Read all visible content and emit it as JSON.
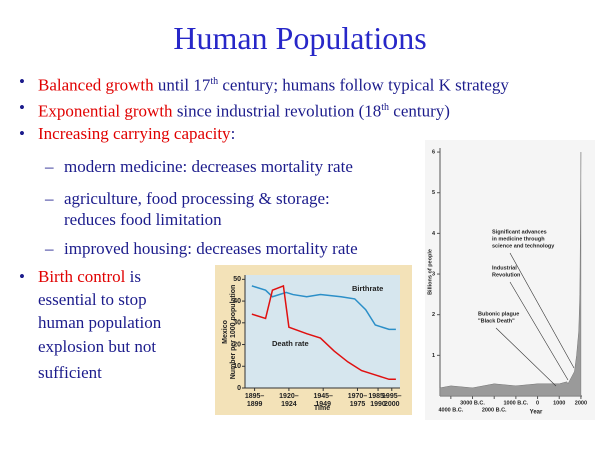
{
  "slide": {
    "title": "Human Populations",
    "bullets": [
      {
        "segments": [
          {
            "text": "Balanced growth",
            "color": "#e00000"
          },
          {
            "text": " until 17"
          },
          {
            "text": "th",
            "sup": true
          },
          {
            "text": " century; humans follow typical K strategy"
          }
        ]
      },
      {
        "segments": [
          {
            "text": "Exponential growth",
            "color": "#e00000"
          },
          {
            "text": " since industrial revolution (18"
          },
          {
            "text": "th",
            "sup": true
          },
          {
            "text": " century)"
          }
        ]
      },
      {
        "segments": [
          {
            "text": "Increasing carrying capacity",
            "color": "#e00000"
          },
          {
            "text": ":"
          }
        ],
        "sub": [
          {
            "lines": [
              "modern medicine: decreases mortality rate"
            ]
          },
          {
            "lines": [
              "agriculture, food processing & storage:",
              "reduces food limitation"
            ]
          },
          {
            "lines": [
              "improved housing: decreases mortality rate"
            ]
          }
        ]
      },
      {
        "segments": [
          {
            "text": "Birth control",
            "color": "#e00000"
          },
          {
            "text": " is"
          }
        ],
        "lines": [
          "essential to stop",
          "human population",
          "explosion but not",
          "sufficient"
        ]
      }
    ]
  },
  "chart_data": [
    {
      "type": "line",
      "country_label": "Mexico",
      "y_label": "Number per 1000 population",
      "x_label": "Time",
      "xlim": [
        1890,
        2003
      ],
      "ylim": [
        0,
        52
      ],
      "yticks": [
        0,
        10,
        20,
        30,
        40,
        50
      ],
      "xticks": [
        {
          "value": 1897,
          "label": [
            "1895–",
            "1899"
          ]
        },
        {
          "value": 1922,
          "label": [
            "1920–",
            "1924"
          ]
        },
        {
          "value": 1947,
          "label": [
            "1945–",
            "1949"
          ]
        },
        {
          "value": 1972,
          "label": [
            "1970–",
            "1975"
          ]
        },
        {
          "value": 1987,
          "label": [
            "1985–",
            "1990"
          ]
        },
        {
          "value": 1997,
          "label": [
            "1995–",
            "2000"
          ]
        }
      ],
      "series": [
        {
          "name": "Birthrate",
          "color": "#2b8fc8",
          "x": [
            1895,
            1905,
            1910,
            1920,
            1925,
            1935,
            1945,
            1960,
            1970,
            1978,
            1985,
            1995,
            2000
          ],
          "values": [
            47,
            45,
            42,
            44,
            43,
            42,
            43,
            42,
            41,
            36,
            29,
            27,
            27
          ]
        },
        {
          "name": "Death rate",
          "color": "#e01010",
          "x": [
            1895,
            1905,
            1910,
            1918,
            1922,
            1935,
            1945,
            1955,
            1965,
            1975,
            1985,
            1995,
            2000
          ],
          "values": [
            34,
            32,
            45,
            47,
            28,
            25,
            23,
            17,
            12,
            8,
            6,
            4,
            4
          ]
        }
      ]
    },
    {
      "type": "area",
      "y_label": "Billions of people",
      "x_label": "Year",
      "xlim": [
        -4500,
        2050
      ],
      "ylim": [
        0,
        6.1
      ],
      "yticks": [
        1,
        2,
        3,
        4,
        5,
        6
      ],
      "xticks": [
        {
          "value": -4000,
          "label": "4000 B.C."
        },
        {
          "value": -3000,
          "label": "3000 B.C."
        },
        {
          "value": -2000,
          "label": "2000 B.C."
        },
        {
          "value": -1000,
          "label": "1000 B.C."
        },
        0,
        1000,
        2000
      ],
      "color": "#9a9a9a",
      "x": [
        -4500,
        -4000,
        -3000,
        -2000,
        -1000,
        0,
        1000,
        1350,
        1400,
        1700,
        1800,
        1900,
        1950,
        1975,
        2000
      ],
      "values": [
        0.2,
        0.25,
        0.2,
        0.3,
        0.25,
        0.3,
        0.3,
        0.35,
        0.3,
        0.6,
        1,
        1.6,
        2.5,
        4,
        6
      ],
      "annotations": [
        {
          "lines": [
            "Significant advances",
            "in medicine through",
            "science and technology"
          ]
        },
        {
          "lines": [
            "Industrial",
            "Revolution"
          ]
        },
        {
          "lines": [
            "Bubonic plague",
            "\"Black Death\""
          ]
        }
      ]
    }
  ]
}
